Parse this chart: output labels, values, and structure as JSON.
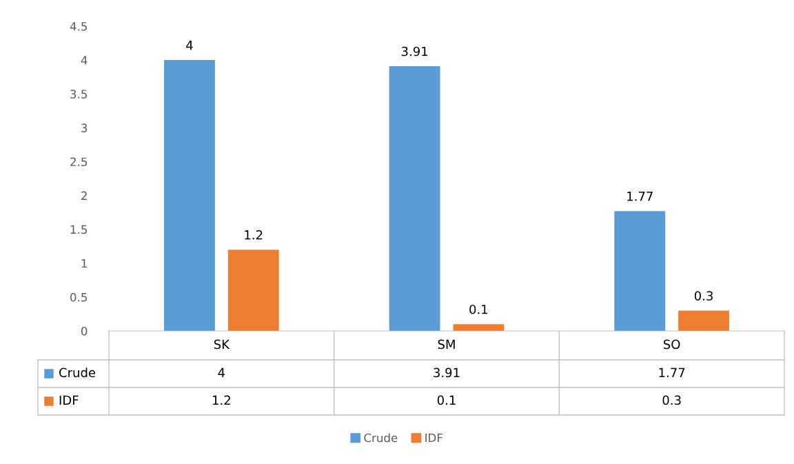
{
  "chart_data": {
    "type": "bar",
    "categories": [
      "SK",
      "SM",
      "SO"
    ],
    "series": [
      {
        "name": "Crude",
        "color": "#5b9bd5",
        "values": [
          4,
          3.91,
          1.77
        ]
      },
      {
        "name": "IDF",
        "color": "#ed7d31",
        "values": [
          1.2,
          0.1,
          0.3
        ]
      }
    ],
    "ylim": [
      0,
      4.5
    ],
    "yticks": [
      0,
      0.5,
      1,
      1.5,
      2,
      2.5,
      3,
      3.5,
      4,
      4.5
    ],
    "annotations": [
      "4",
      "3.91",
      "1.77",
      "1.2",
      "0.1",
      "0.3"
    ],
    "data_labels": true,
    "grid": false,
    "legend": "bottom"
  }
}
